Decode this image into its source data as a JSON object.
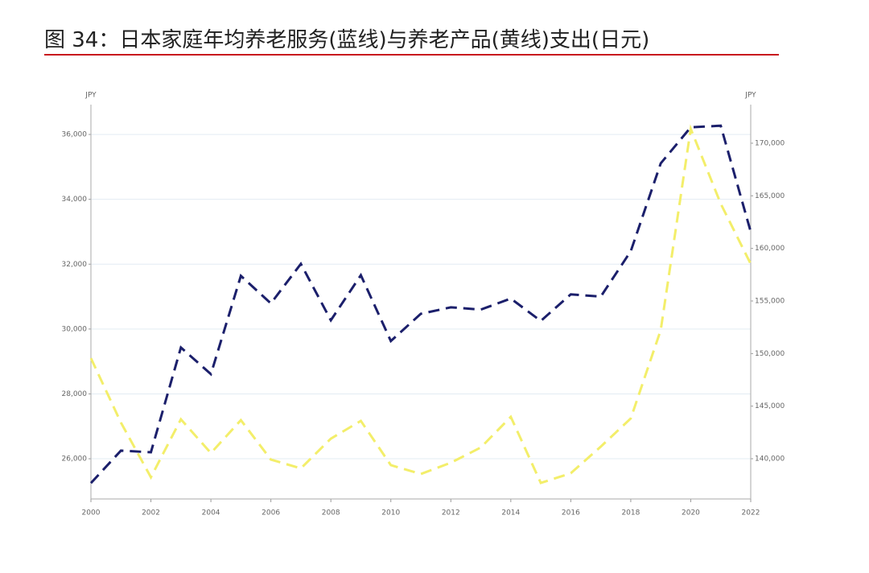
{
  "chart_data": {
    "type": "line",
    "title": "图 34：日本家庭年均养老服务(蓝线)与养老产品(黄线)支出(日元)",
    "y_label": "JPY",
    "y2_label": "JPY",
    "x": [
      2000,
      2001,
      2002,
      2003,
      2004,
      2005,
      2006,
      2007,
      2008,
      2009,
      2010,
      2011,
      2012,
      2013,
      2014,
      2015,
      2016,
      2017,
      2018,
      2019,
      2020,
      2021,
      2022
    ],
    "xlim": [
      2000,
      2022
    ],
    "xticks": [
      2000,
      2002,
      2004,
      2006,
      2008,
      2010,
      2012,
      2014,
      2016,
      2018,
      2020,
      2022
    ],
    "ylim": [
      24760,
      36920
    ],
    "yticks": [
      {
        "value": 26000,
        "label": "26,000"
      },
      {
        "value": 28000,
        "label": "28,000"
      },
      {
        "value": 30000,
        "label": "30,000"
      },
      {
        "value": 32000,
        "label": "32,000"
      },
      {
        "value": 34000,
        "label": "34,000"
      },
      {
        "value": 36000,
        "label": "36,000"
      }
    ],
    "y2lim": [
      136175,
      173670
    ],
    "y2ticks": [
      {
        "value": 140000,
        "label": "140,000"
      },
      {
        "value": 145000,
        "label": "145,000"
      },
      {
        "value": 150000,
        "label": "150,000"
      },
      {
        "value": 155000,
        "label": "155,000"
      },
      {
        "value": 160000,
        "label": "160,000"
      },
      {
        "value": 165000,
        "label": "165,000"
      },
      {
        "value": 170000,
        "label": "170,000"
      }
    ],
    "grid": true,
    "series": [
      {
        "color": "#1b1f6b",
        "values": [
          25250,
          26250,
          26200,
          29430,
          28610,
          31640,
          30790,
          32010,
          30270,
          31660,
          29630,
          30470,
          30670,
          30600,
          30940,
          30250,
          31070,
          31000,
          32400,
          35110,
          36220,
          36270,
          33000
        ]
      },
      {
        "color": "#f3ee6a",
        "axis": "y2",
        "values": [
          149560,
          143440,
          138240,
          143750,
          140540,
          143670,
          139920,
          139080,
          141910,
          143600,
          139390,
          138550,
          139620,
          141070,
          143980,
          137700,
          138620,
          141150,
          143830,
          152240,
          171370,
          164250,
          158520
        ]
      }
    ]
  }
}
